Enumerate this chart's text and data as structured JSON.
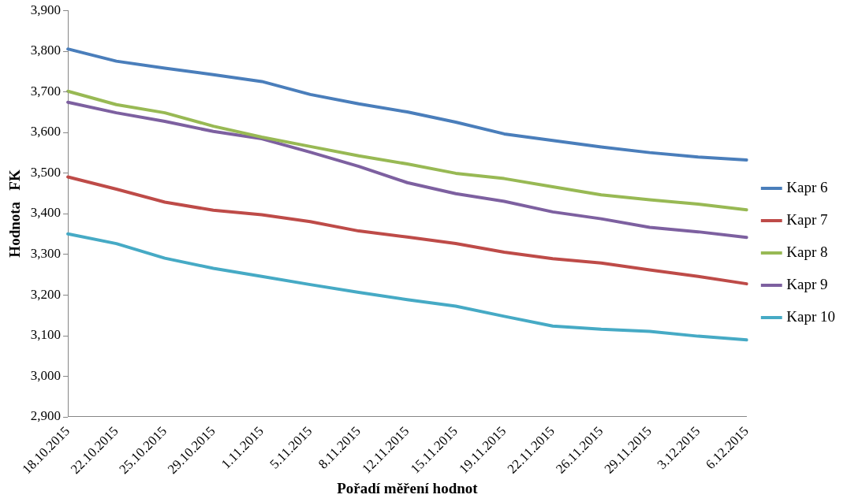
{
  "chart_data": {
    "type": "line",
    "xlabel": "Pořadí měření hodnot",
    "ylabel": "Hodnota   FK",
    "categories": [
      "18.10.2015",
      "22.10.2015",
      "25.10.2015",
      "29.10.2015",
      "1.11.2015",
      "5.11.2015",
      "8.11.2015",
      "12.11.2015",
      "15.11.2015",
      "19.11.2015",
      "22.11.2015",
      "26.11.2015",
      "29.11.2015",
      "3.12.2015",
      "6.12.2015"
    ],
    "series": [
      {
        "name": "Kapr 6",
        "color": "#4a7ebb",
        "values": [
          3805,
          3775,
          3758,
          3742,
          3725,
          3693,
          3670,
          3650,
          3625,
          3596,
          3580,
          3564,
          3550,
          3539,
          3532
        ]
      },
      {
        "name": "Kapr 7",
        "color": "#be4b48",
        "values": [
          3490,
          3460,
          3428,
          3408,
          3397,
          3380,
          3357,
          3342,
          3326,
          3305,
          3289,
          3278,
          3261,
          3245,
          3227
        ]
      },
      {
        "name": "Kapr 8",
        "color": "#98b954",
        "values": [
          3701,
          3668,
          3648,
          3615,
          3588,
          3565,
          3542,
          3522,
          3499,
          3486,
          3466,
          3446,
          3434,
          3423,
          3409
        ]
      },
      {
        "name": "Kapr 9",
        "color": "#7d60a0",
        "values": [
          3674,
          3648,
          3627,
          3602,
          3584,
          3551,
          3516,
          3476,
          3449,
          3430,
          3404,
          3387,
          3366,
          3355,
          3341
        ]
      },
      {
        "name": "Kapr 10",
        "color": "#46aac5",
        "values": [
          3350,
          3326,
          3290,
          3265,
          3245,
          3225,
          3206,
          3188,
          3172,
          3147,
          3123,
          3115,
          3110,
          3098,
          3089
        ]
      }
    ],
    "ylim": [
      2900,
      3900
    ],
    "yticks": [
      {
        "value": 2900,
        "label": "2,900"
      },
      {
        "value": 3000,
        "label": "3,000"
      },
      {
        "value": 3100,
        "label": "3,100"
      },
      {
        "value": 3200,
        "label": "3,200"
      },
      {
        "value": 3300,
        "label": "3,300"
      },
      {
        "value": 3400,
        "label": "3,400"
      },
      {
        "value": 3500,
        "label": "3,500"
      },
      {
        "value": 3600,
        "label": "3,600"
      },
      {
        "value": 3700,
        "label": "3,700"
      },
      {
        "value": 3800,
        "label": "3,800"
      },
      {
        "value": 3900,
        "label": "3,900"
      }
    ],
    "grid": false,
    "legend": "right",
    "marker": "none",
    "line_style": "solid"
  }
}
